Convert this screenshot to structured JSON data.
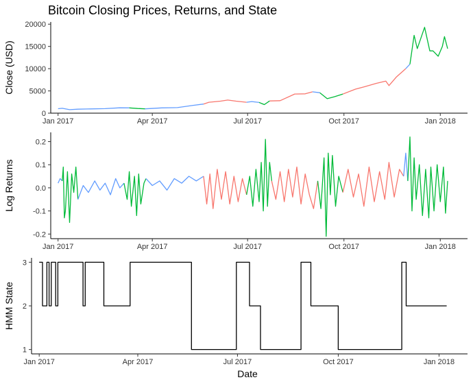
{
  "figure": {
    "title": "Bitcoin Closing Prices, Returns, and State",
    "xlabel": "Date"
  },
  "colors": {
    "state1": "#F8766D",
    "state2": "#619CFF",
    "state3": "#00BA38",
    "hmm_line": "#000000"
  },
  "chart_data": [
    {
      "type": "line",
      "title": "Bitcoin Closing Prices, Returns, and State",
      "ylabel": "Close (USD)",
      "xlim": [
        "2016-12-25",
        "2018-01-27"
      ],
      "ylim": [
        0,
        20500
      ],
      "x_ticks": [
        {
          "date": "2017-01-01",
          "label": "Jan 2017"
        },
        {
          "date": "2017-04-01",
          "label": "Apr 2017"
        },
        {
          "date": "2017-07-01",
          "label": "Jul 2017"
        },
        {
          "date": "2017-10-01",
          "label": "Oct 2017"
        },
        {
          "date": "2018-01-01",
          "label": "Jan 2018"
        }
      ],
      "y_ticks": [
        0,
        5000,
        10000,
        15000,
        20000
      ],
      "color_by": "HMM state",
      "grid": false,
      "legend": "none",
      "series": [
        {
          "state": 2,
          "x": [
            "2017-01-01",
            "2017-01-05",
            "2017-01-12",
            "2017-01-20",
            "2017-02-01",
            "2017-02-15",
            "2017-03-01",
            "2017-03-10"
          ],
          "values": [
            998,
            1100,
            780,
            890,
            960,
            1010,
            1200,
            1180
          ]
        },
        {
          "state": 3,
          "x": [
            "2017-03-10",
            "2017-03-18",
            "2017-03-25"
          ],
          "values": [
            1180,
            1050,
            970
          ]
        },
        {
          "state": 2,
          "x": [
            "2017-03-25",
            "2017-04-10",
            "2017-04-25",
            "2017-05-10",
            "2017-05-20"
          ],
          "values": [
            970,
            1180,
            1250,
            1750,
            2050
          ]
        },
        {
          "state": 1,
          "x": [
            "2017-05-20",
            "2017-05-25",
            "2017-06-05",
            "2017-06-12",
            "2017-06-20",
            "2017-06-30"
          ],
          "values": [
            2050,
            2450,
            2700,
            2950,
            2700,
            2450
          ]
        },
        {
          "state": 2,
          "x": [
            "2017-06-30",
            "2017-07-05",
            "2017-07-12"
          ],
          "values": [
            2450,
            2600,
            2400
          ]
        },
        {
          "state": 3,
          "x": [
            "2017-07-12",
            "2017-07-17",
            "2017-07-22"
          ],
          "values": [
            2400,
            1930,
            2750
          ]
        },
        {
          "state": 1,
          "x": [
            "2017-07-22",
            "2017-08-01",
            "2017-08-15",
            "2017-08-25",
            "2017-09-01"
          ],
          "values": [
            2750,
            2800,
            4300,
            4350,
            4800
          ]
        },
        {
          "state": 2,
          "x": [
            "2017-09-01",
            "2017-09-08"
          ],
          "values": [
            4800,
            4600
          ]
        },
        {
          "state": 3,
          "x": [
            "2017-09-08",
            "2017-09-15",
            "2017-09-22",
            "2017-09-30"
          ],
          "values": [
            4600,
            3250,
            3700,
            4300
          ]
        },
        {
          "state": 1,
          "x": [
            "2017-09-30",
            "2017-10-12",
            "2017-10-20",
            "2017-11-01",
            "2017-11-10",
            "2017-11-13",
            "2017-11-20",
            "2017-11-29"
          ],
          "values": [
            4300,
            5400,
            5900,
            6700,
            7200,
            6200,
            8100,
            10000
          ]
        },
        {
          "state": 2,
          "x": [
            "2017-11-29",
            "2017-12-03"
          ],
          "values": [
            10000,
            11000
          ]
        },
        {
          "state": 3,
          "x": [
            "2017-12-03",
            "2017-12-07",
            "2017-12-10",
            "2017-12-17",
            "2017-12-22",
            "2017-12-25",
            "2017-12-30",
            "2018-01-03",
            "2018-01-05",
            "2018-01-08"
          ],
          "values": [
            11000,
            17500,
            14500,
            19300,
            14000,
            14000,
            12800,
            15000,
            17200,
            14500
          ]
        }
      ]
    },
    {
      "type": "line",
      "ylabel": "Log Returns",
      "xlim": [
        "2016-12-25",
        "2018-01-27"
      ],
      "ylim": [
        -0.22,
        0.24
      ],
      "x_ticks": [
        {
          "date": "2017-01-01",
          "label": "Jan 2017"
        },
        {
          "date": "2017-04-01",
          "label": "Apr 2017"
        },
        {
          "date": "2017-07-01",
          "label": "Jul 2017"
        },
        {
          "date": "2017-10-01",
          "label": "Oct 2017"
        },
        {
          "date": "2018-01-01",
          "label": "Jan 2018"
        }
      ],
      "y_ticks": [
        -0.2,
        -0.1,
        0.0,
        0.1,
        0.2
      ],
      "y_tick_labels": [
        "-0.2",
        "-0.1",
        "0.0",
        "0.1",
        "0.2"
      ],
      "color_by": "HMM state",
      "grid": false,
      "legend": "none",
      "series": [
        {
          "state": 2,
          "x": [
            "2017-01-01",
            "2017-01-03",
            "2017-01-05"
          ],
          "values": [
            0.02,
            0.04,
            0.03
          ]
        },
        {
          "state": 3,
          "x": [
            "2017-01-05",
            "2017-01-06",
            "2017-01-07",
            "2017-01-08",
            "2017-01-10",
            "2017-01-12",
            "2017-01-14",
            "2017-01-16",
            "2017-01-18",
            "2017-01-20"
          ],
          "values": [
            0.03,
            0.09,
            -0.13,
            -0.1,
            0.07,
            -0.15,
            0.06,
            -0.02,
            0.09,
            -0.05
          ]
        },
        {
          "state": 2,
          "x": [
            "2017-01-20",
            "2017-01-25",
            "2017-01-30",
            "2017-02-05",
            "2017-02-10",
            "2017-02-15",
            "2017-02-20",
            "2017-02-25",
            "2017-03-01",
            "2017-03-05"
          ],
          "values": [
            -0.05,
            0.01,
            -0.02,
            0.03,
            -0.01,
            0.02,
            -0.03,
            0.04,
            0.0,
            0.02
          ]
        },
        {
          "state": 3,
          "x": [
            "2017-03-05",
            "2017-03-08",
            "2017-03-10",
            "2017-03-12",
            "2017-03-15",
            "2017-03-17",
            "2017-03-19",
            "2017-03-21",
            "2017-03-24",
            "2017-03-26"
          ],
          "values": [
            0.02,
            -0.05,
            0.07,
            -0.08,
            0.05,
            -0.12,
            0.06,
            -0.07,
            0.02,
            0.04
          ]
        },
        {
          "state": 2,
          "x": [
            "2017-03-26",
            "2017-04-01",
            "2017-04-08",
            "2017-04-15",
            "2017-04-22",
            "2017-04-29",
            "2017-05-06",
            "2017-05-13",
            "2017-05-20"
          ],
          "values": [
            0.04,
            0.01,
            0.03,
            -0.01,
            0.04,
            0.02,
            0.05,
            0.03,
            0.05
          ]
        },
        {
          "state": 1,
          "x": [
            "2017-05-20",
            "2017-05-23",
            "2017-05-26",
            "2017-05-29",
            "2017-06-02",
            "2017-06-06",
            "2017-06-10",
            "2017-06-14",
            "2017-06-18",
            "2017-06-22",
            "2017-06-26",
            "2017-06-30"
          ],
          "values": [
            0.05,
            -0.07,
            0.06,
            -0.09,
            0.08,
            -0.05,
            0.07,
            -0.07,
            0.05,
            -0.06,
            0.04,
            -0.03
          ]
        },
        {
          "state": 3,
          "x": [
            "2017-06-30",
            "2017-07-03",
            "2017-07-06",
            "2017-07-09",
            "2017-07-12",
            "2017-07-14",
            "2017-07-16",
            "2017-07-18",
            "2017-07-20",
            "2017-07-22",
            "2017-07-24"
          ],
          "values": [
            -0.03,
            0.05,
            -0.08,
            0.08,
            -0.06,
            0.11,
            -0.1,
            0.21,
            -0.08,
            0.11,
            0.03
          ]
        },
        {
          "state": 1,
          "x": [
            "2017-07-24",
            "2017-07-28",
            "2017-08-01",
            "2017-08-05",
            "2017-08-09",
            "2017-08-13",
            "2017-08-17",
            "2017-08-21",
            "2017-08-25",
            "2017-08-29",
            "2017-09-02",
            "2017-09-06"
          ],
          "values": [
            0.03,
            -0.05,
            0.07,
            -0.06,
            0.08,
            -0.04,
            0.09,
            -0.07,
            0.06,
            -0.03,
            -0.09,
            0.03
          ]
        },
        {
          "state": 3,
          "x": [
            "2017-09-06",
            "2017-09-09",
            "2017-09-12",
            "2017-09-14",
            "2017-09-16",
            "2017-09-18",
            "2017-09-20",
            "2017-09-23",
            "2017-09-26",
            "2017-09-30"
          ],
          "values": [
            0.03,
            -0.09,
            0.13,
            -0.21,
            0.15,
            -0.03,
            0.14,
            -0.08,
            0.05,
            -0.02
          ]
        },
        {
          "state": 1,
          "x": [
            "2017-09-30",
            "2017-10-05",
            "2017-10-10",
            "2017-10-15",
            "2017-10-20",
            "2017-10-25",
            "2017-10-30",
            "2017-11-04",
            "2017-11-09",
            "2017-11-13",
            "2017-11-18",
            "2017-11-23",
            "2017-11-27"
          ],
          "values": [
            -0.02,
            0.08,
            -0.04,
            0.06,
            -0.08,
            0.09,
            -0.06,
            0.07,
            -0.05,
            0.11,
            -0.04,
            0.08,
            0.05
          ]
        },
        {
          "state": 2,
          "x": [
            "2017-11-27",
            "2017-11-29",
            "2017-12-01"
          ],
          "values": [
            0.05,
            0.15,
            0.03
          ]
        },
        {
          "state": 3,
          "x": [
            "2017-12-01",
            "2017-12-03",
            "2017-12-05",
            "2017-12-07",
            "2017-12-09",
            "2017-12-12",
            "2017-12-15",
            "2017-12-18",
            "2017-12-21",
            "2017-12-23",
            "2017-12-26",
            "2017-12-29",
            "2018-01-01",
            "2018-01-04",
            "2018-01-06",
            "2018-01-08"
          ],
          "values": [
            0.03,
            0.22,
            -0.1,
            0.13,
            -0.05,
            0.1,
            -0.12,
            0.08,
            -0.13,
            0.09,
            -0.1,
            0.1,
            -0.06,
            0.09,
            -0.11,
            0.03
          ]
        }
      ]
    },
    {
      "type": "line",
      "ylabel": "HMM State",
      "xlabel": "Date",
      "xlim": [
        "2016-12-25",
        "2018-01-27"
      ],
      "ylim": [
        0.9,
        3.1
      ],
      "x_ticks": [
        {
          "date": "2017-01-01",
          "label": "Jan 2017"
        },
        {
          "date": "2017-04-01",
          "label": "Apr 2017"
        },
        {
          "date": "2017-07-01",
          "label": "Jul 2017"
        },
        {
          "date": "2017-10-01",
          "label": "Oct 2017"
        },
        {
          "date": "2018-01-01",
          "label": "Jan 2018"
        }
      ],
      "y_ticks": [
        1,
        2,
        3
      ],
      "step": true,
      "grid": false,
      "legend": "none",
      "series": [
        {
          "x": [
            "2017-01-01",
            "2017-01-04",
            "2017-01-08",
            "2017-01-10",
            "2017-01-12",
            "2017-01-14",
            "2017-01-16",
            "2017-01-18",
            "2017-01-20",
            "2017-02-10",
            "2017-02-12",
            "2017-03-01",
            "2017-03-25",
            "2017-05-20",
            "2017-06-30",
            "2017-07-12",
            "2017-07-22",
            "2017-08-28",
            "2017-09-06",
            "2017-10-01",
            "2017-11-28",
            "2017-12-02",
            "2018-01-08"
          ],
          "values": [
            3,
            2,
            3,
            2,
            3,
            3,
            2,
            3,
            3,
            2,
            3,
            2,
            3,
            1,
            3,
            2,
            1,
            3,
            2,
            1,
            3,
            2,
            2
          ]
        }
      ]
    }
  ]
}
